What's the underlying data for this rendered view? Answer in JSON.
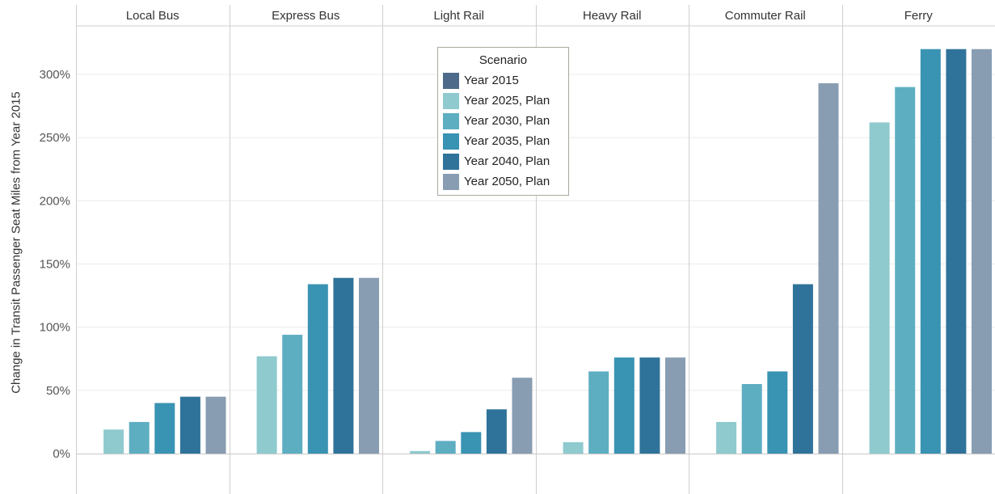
{
  "chart_data": {
    "type": "bar",
    "ylabel": "Change in Transit Passenger Seat Miles from Year 2015",
    "ylim": [
      -35,
      340
    ],
    "yticks": [
      0,
      50,
      100,
      150,
      200,
      250,
      300
    ],
    "ytick_labels": [
      "0%",
      "50%",
      "100%",
      "150%",
      "200%",
      "250%",
      "300%"
    ],
    "categories": [
      "Local Bus",
      "Express Bus",
      "Light Rail",
      "Heavy Rail",
      "Commuter Rail",
      "Ferry"
    ],
    "legend": {
      "title": "Scenario",
      "placement": "top-center"
    },
    "series": [
      {
        "name": "Year 2015",
        "color": "#4e6a8a",
        "values": [
          0,
          0,
          0,
          0,
          0,
          0
        ]
      },
      {
        "name": "Year 2025, Plan",
        "color": "#8ecace",
        "values": [
          19,
          77,
          2,
          9,
          25,
          262
        ]
      },
      {
        "name": "Year 2030, Plan",
        "color": "#5eaec2",
        "values": [
          25,
          94,
          10,
          65,
          55,
          290
        ]
      },
      {
        "name": "Year 2035, Plan",
        "color": "#3993b3",
        "values": [
          40,
          134,
          17,
          76,
          65,
          320
        ]
      },
      {
        "name": "Year 2040, Plan",
        "color": "#30739a",
        "values": [
          45,
          139,
          35,
          76,
          134,
          320
        ]
      },
      {
        "name": "Year 2050, Plan",
        "color": "#889db2",
        "values": [
          45,
          139,
          60,
          76,
          293,
          320
        ]
      }
    ]
  }
}
